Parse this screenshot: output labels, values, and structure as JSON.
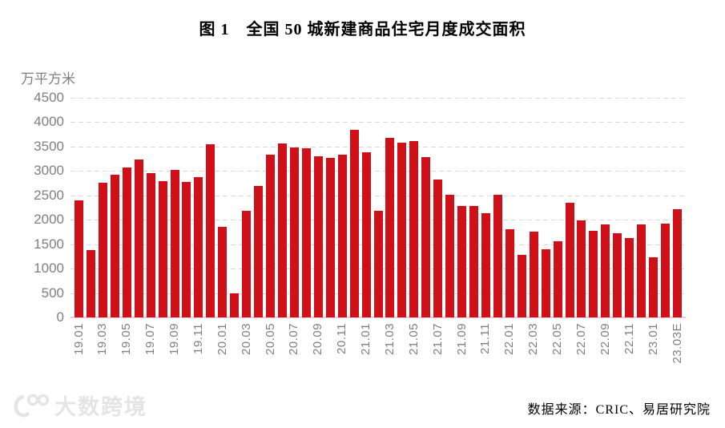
{
  "title": "图 1　全国 50 城新建商品住宅月度成交面积",
  "unit_label": "万平方米",
  "source_note": "数据来源：CRIC、易居研究院",
  "watermark": {
    "text": "大数跨境",
    "icon": "circles-logo-icon"
  },
  "colors": {
    "bar": "#cf1019",
    "gridline": "#d9d9d9",
    "axis_text": "#7f7f7f",
    "baseline": "#f5c9c9",
    "title_text": "#000000"
  },
  "chart_data": {
    "type": "bar",
    "title": "图 1　全国 50 城新建商品住宅月度成交面积",
    "xlabel": "",
    "ylabel": "万平方米",
    "ylim": [
      0,
      4500
    ],
    "ytick_step": 500,
    "grid": "horizontal-dashed",
    "legend": "none",
    "categories": [
      "19.01",
      "19.02",
      "19.03",
      "19.04",
      "19.05",
      "19.06",
      "19.07",
      "19.08",
      "19.09",
      "19.10",
      "19.11",
      "19.12",
      "20.01",
      "20.02",
      "20.03",
      "20.04",
      "20.05",
      "20.06",
      "20.07",
      "20.08",
      "20.09",
      "20.10",
      "20.11",
      "20.12",
      "21.01",
      "21.02",
      "21.03",
      "21.04",
      "21.05",
      "21.06",
      "21.07",
      "21.08",
      "21.09",
      "21.10",
      "21.11",
      "21.12",
      "22.01",
      "22.02",
      "22.03",
      "22.04",
      "22.05",
      "22.06",
      "22.07",
      "22.08",
      "22.09",
      "22.10",
      "22.11",
      "22.12",
      "23.01",
      "23.02",
      "23.03E"
    ],
    "values": [
      2400,
      1380,
      2760,
      2930,
      3070,
      3240,
      2960,
      2800,
      3030,
      2770,
      2870,
      3540,
      1860,
      490,
      2180,
      2690,
      3330,
      3570,
      3490,
      3470,
      3300,
      3270,
      3330,
      3850,
      3390,
      2190,
      3680,
      3580,
      3620,
      3290,
      2830,
      2510,
      2290,
      2290,
      2140,
      2510,
      1810,
      1280,
      1760,
      1400,
      1560,
      2350,
      1990,
      1770,
      1900,
      1720,
      1620,
      1900,
      1240,
      1920,
      2220
    ],
    "xtick_labels_shown": [
      "19.01",
      "19.03",
      "19.05",
      "19.07",
      "19.09",
      "19.11",
      "20.01",
      "20.03",
      "20.05",
      "20.07",
      "20.09",
      "20.11",
      "21.01",
      "21.03",
      "21.05",
      "21.07",
      "21.09",
      "21.11",
      "22.01",
      "22.03",
      "22.05",
      "22.07",
      "22.09",
      "22.11",
      "23.01",
      "23.03E"
    ]
  }
}
